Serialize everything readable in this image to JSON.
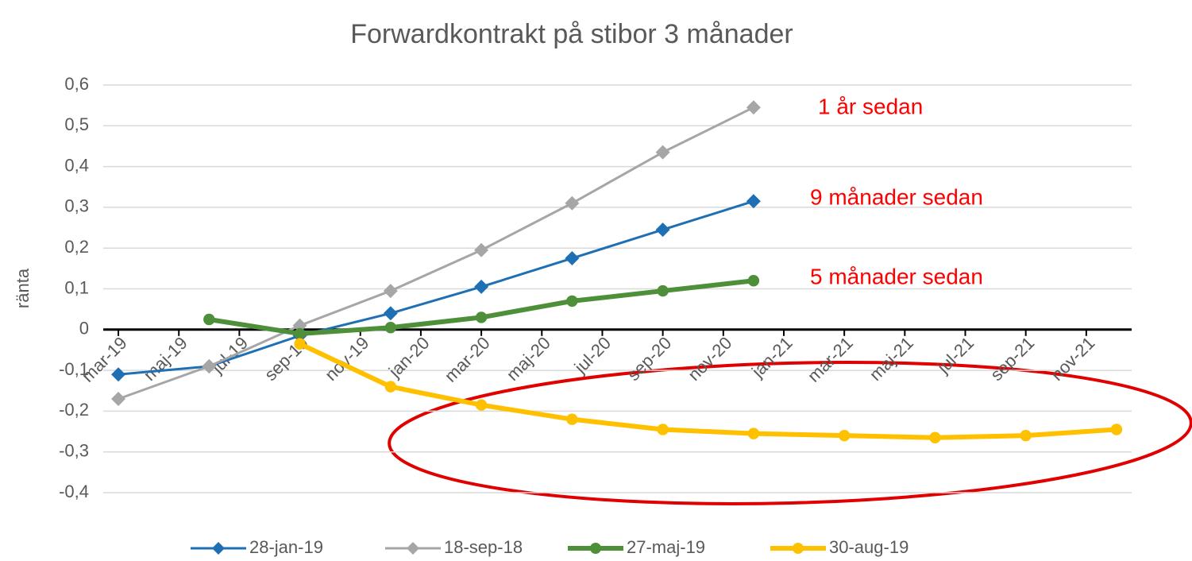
{
  "chart_data": {
    "type": "line",
    "title": "Forwardkontrakt på stibor 3 månader",
    "y_label": "ränta",
    "x": [
      0,
      3,
      6,
      9,
      12,
      15,
      18,
      21,
      24,
      27,
      30,
      33
    ],
    "xlim": [
      -0.5,
      33.5
    ],
    "xticks": [
      {
        "value": 0,
        "label": "mar-19"
      },
      {
        "value": 2,
        "label": "maj-19"
      },
      {
        "value": 4,
        "label": "jul-19"
      },
      {
        "value": 6,
        "label": "sep-19"
      },
      {
        "value": 8,
        "label": "nov-19"
      },
      {
        "value": 10,
        "label": "jan-20"
      },
      {
        "value": 12,
        "label": "mar-20"
      },
      {
        "value": 14,
        "label": "maj-20"
      },
      {
        "value": 16,
        "label": "jul-20"
      },
      {
        "value": 18,
        "label": "sep-20"
      },
      {
        "value": 20,
        "label": "nov-20"
      },
      {
        "value": 22,
        "label": "jan-21"
      },
      {
        "value": 24,
        "label": "mar-21"
      },
      {
        "value": 26,
        "label": "maj-21"
      },
      {
        "value": 28,
        "label": "jul-21"
      },
      {
        "value": 30,
        "label": "sep-21"
      },
      {
        "value": 32,
        "label": "nov-21"
      }
    ],
    "ylim": [
      -0.4,
      0.6
    ],
    "yticks": [
      {
        "value": -0.4,
        "label": "-0,4"
      },
      {
        "value": -0.3,
        "label": "-0,3"
      },
      {
        "value": -0.2,
        "label": "-0,2"
      },
      {
        "value": -0.1,
        "label": "-0,1"
      },
      0,
      {
        "value": 0.1,
        "label": "0,1"
      },
      {
        "value": 0.2,
        "label": "0,2"
      },
      {
        "value": 0.3,
        "label": "0,3"
      },
      {
        "value": 0.4,
        "label": "0,4"
      },
      {
        "value": 0.5,
        "label": "0,5"
      },
      {
        "value": 0.6,
        "label": "0,6"
      }
    ],
    "grid": true,
    "legend": "bottom",
    "series": [
      {
        "name": "28-jan-19",
        "color": "#1f6fb4",
        "marker": "diamond",
        "line_width": 3,
        "values": [
          -0.11,
          -0.09,
          -0.015,
          0.04,
          0.105,
          0.175,
          0.245,
          0.315,
          null,
          null,
          null,
          null
        ]
      },
      {
        "name": "18-sep-18",
        "color": "#a6a6a6",
        "marker": "diamond",
        "line_width": 3,
        "values": [
          -0.17,
          -0.09,
          0.01,
          0.095,
          0.195,
          0.31,
          0.435,
          0.545,
          null,
          null,
          null,
          null
        ]
      },
      {
        "name": "27-maj-19",
        "color": "#4e8f3a",
        "marker": "circle",
        "line_width": 6,
        "values": [
          null,
          0.025,
          -0.01,
          0.005,
          0.03,
          0.07,
          0.095,
          0.12,
          null,
          null,
          null,
          null
        ]
      },
      {
        "name": "30-aug-19",
        "color": "#ffc000",
        "marker": "circle",
        "line_width": 6,
        "values": [
          null,
          null,
          -0.035,
          -0.14,
          -0.185,
          -0.22,
          -0.245,
          -0.255,
          -0.26,
          -0.265,
          -0.26,
          -0.245
        ]
      }
    ],
    "annotations": [
      {
        "text": "1 år sedan",
        "color": "#ff0000"
      },
      {
        "text": "9 månader sedan",
        "color": "#ff0000"
      },
      {
        "text": "5 månader sedan",
        "color": "#ff0000"
      }
    ]
  }
}
